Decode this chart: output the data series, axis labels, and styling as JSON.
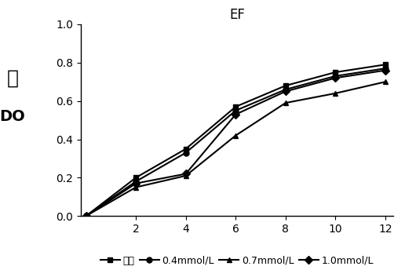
{
  "title": "EF",
  "ylabel_cjk": "値",
  "ylabel_latin": "DO",
  "x": [
    0,
    2,
    4,
    6,
    8,
    10,
    12
  ],
  "series": [
    {
      "label": "空白",
      "values": [
        0,
        0.2,
        0.35,
        0.57,
        0.68,
        0.75,
        0.79
      ],
      "marker": "s",
      "color": "#000000",
      "linestyle": "-"
    },
    {
      "label": "0.4mmol/L",
      "values": [
        0,
        0.18,
        0.33,
        0.55,
        0.66,
        0.73,
        0.77
      ],
      "marker": "o",
      "color": "#000000",
      "linestyle": "-"
    },
    {
      "label": "0.7mmol/L",
      "values": [
        0,
        0.15,
        0.21,
        0.42,
        0.59,
        0.64,
        0.7
      ],
      "marker": "^",
      "color": "#000000",
      "linestyle": "-"
    },
    {
      "label": "1.0mmol/L",
      "values": [
        0,
        0.17,
        0.22,
        0.53,
        0.65,
        0.72,
        0.76
      ],
      "marker": "D",
      "color": "#000000",
      "linestyle": "-"
    }
  ],
  "xlim_min": -0.2,
  "xlim_max": 12.3,
  "ylim": [
    0,
    1
  ],
  "yticks": [
    0,
    0.2,
    0.4,
    0.6,
    0.8,
    1
  ],
  "xticks": [
    2,
    4,
    6,
    8,
    10,
    12
  ],
  "background_color": "#ffffff",
  "title_fontsize": 12,
  "tick_fontsize": 10,
  "legend_fontsize": 9,
  "cjk_fontsize": 18,
  "do_fontsize": 14
}
